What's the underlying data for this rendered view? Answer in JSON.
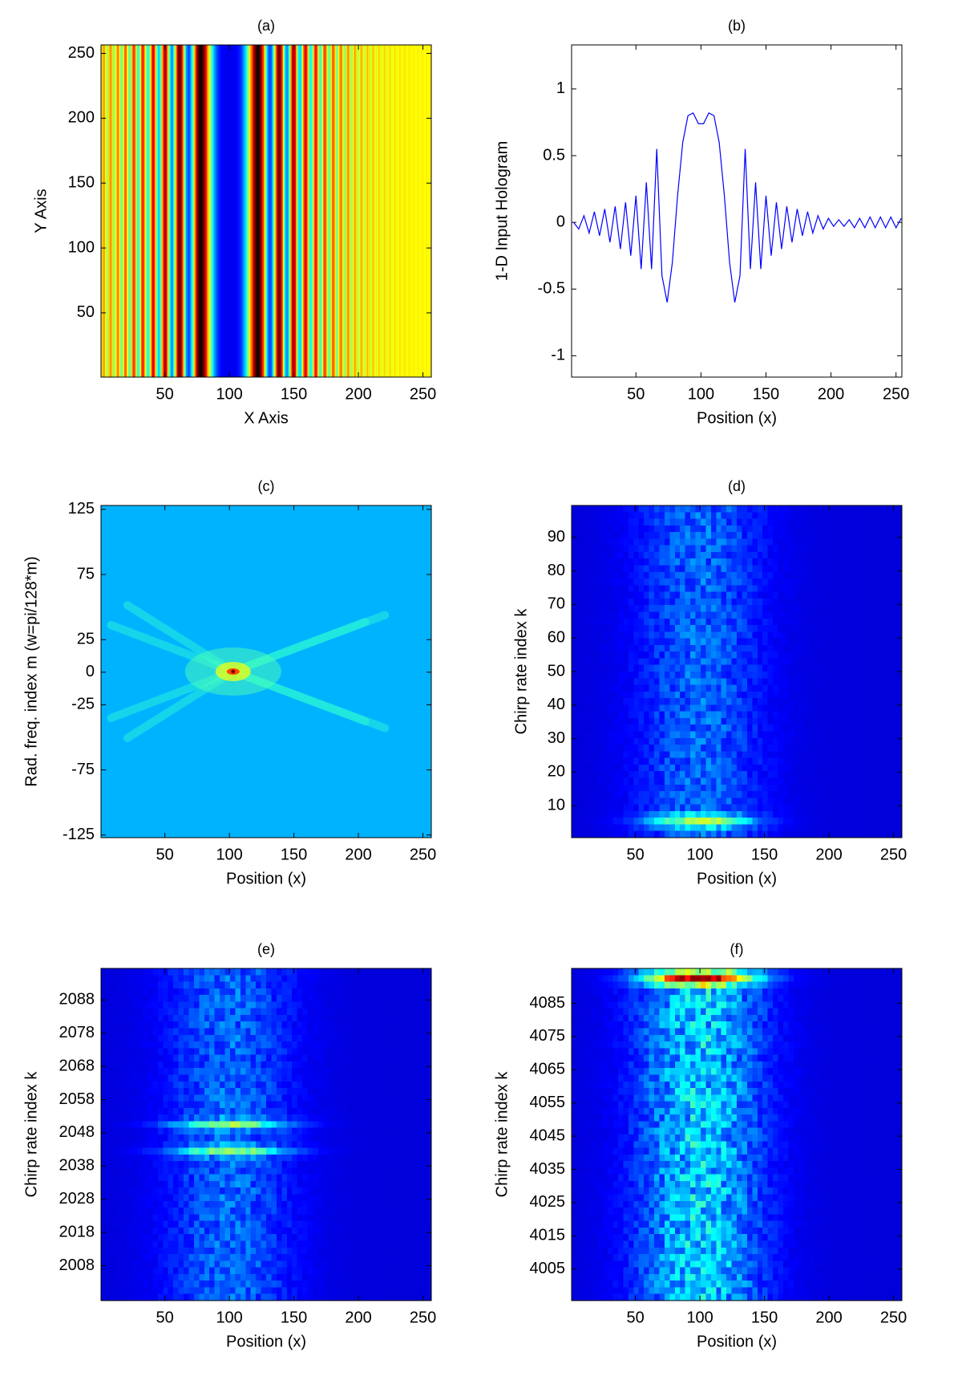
{
  "chart_data": [
    {
      "type": "image",
      "title": "(a)",
      "x_label": "X Axis",
      "y_label": "Y Axis",
      "xlim": [
        0.5,
        256.5
      ],
      "ylim": [
        0.5,
        256.5
      ],
      "xticks": [
        50,
        100,
        150,
        200,
        250
      ],
      "yticks": [
        50,
        100,
        150,
        200,
        250
      ]
    },
    {
      "type": "line",
      "title": "(b)",
      "x_label": "Position (x)",
      "y_label": "1-D Input Hologram",
      "x": [
        2,
        6,
        10,
        14,
        18,
        22,
        26,
        30,
        34,
        38,
        42,
        46,
        50,
        54,
        58,
        62,
        66,
        70,
        74,
        78,
        82,
        86,
        90,
        94,
        98,
        102,
        106,
        110,
        114,
        118,
        122,
        126,
        130,
        134,
        138,
        142,
        146,
        150,
        154,
        158,
        162,
        166,
        170,
        174,
        178,
        182,
        186,
        190,
        194,
        198,
        202,
        206,
        210,
        214,
        218,
        222,
        226,
        230,
        234,
        238,
        242,
        246,
        250,
        254
      ],
      "series": [
        {
          "color": "#0000ff",
          "values": [
            0.0,
            -0.05,
            0.05,
            -0.08,
            0.08,
            -0.1,
            0.1,
            -0.15,
            0.12,
            -0.2,
            0.15,
            -0.25,
            0.2,
            -0.35,
            0.3,
            -0.35,
            0.55,
            -0.4,
            -0.6,
            -0.3,
            0.2,
            0.6,
            0.8,
            0.82,
            0.74,
            0.74,
            0.82,
            0.8,
            0.6,
            0.2,
            -0.3,
            -0.6,
            -0.4,
            0.55,
            -0.35,
            0.3,
            -0.35,
            0.2,
            -0.25,
            0.15,
            -0.2,
            0.12,
            -0.15,
            0.1,
            -0.1,
            0.08,
            -0.08,
            0.05,
            -0.05,
            0.03,
            -0.03,
            0.02,
            -0.03,
            0.02,
            -0.04,
            0.03,
            -0.04,
            0.04,
            -0.04,
            0.04,
            -0.04,
            0.04,
            -0.04,
            0.03
          ]
        }
      ],
      "xlim": [
        0.5,
        254.5
      ],
      "ylim": [
        -1.16,
        1.33
      ],
      "xticks": [
        50,
        100,
        150,
        200,
        250
      ],
      "yticks": [
        -1,
        -0.5,
        0,
        0.5,
        1
      ]
    },
    {
      "type": "image",
      "title": "(c)",
      "x_label": "Position (x)",
      "y_label": "Rad. freq. index m (w=pi/128*m)",
      "xlim": [
        0.5,
        256.5
      ],
      "ylim": [
        -127,
        128
      ],
      "xticks": [
        50,
        100,
        150,
        200,
        250
      ],
      "yticks": [
        125,
        75,
        25,
        0,
        -25,
        -75,
        -125
      ]
    },
    {
      "type": "image",
      "title": "(d)",
      "x_label": "Position (x)",
      "y_label": "Chirp rate index k",
      "xlim": [
        0.5,
        256.5
      ],
      "ylim": [
        0.5,
        99.5
      ],
      "xticks": [
        50,
        100,
        150,
        200,
        250
      ],
      "yticks": [
        10,
        20,
        30,
        40,
        50,
        60,
        70,
        80,
        90
      ]
    },
    {
      "type": "image",
      "title": "(e)",
      "x_label": "Position (x)",
      "y_label": "Chirp rate index k",
      "xlim": [
        0.5,
        256.5
      ],
      "ylim": [
        1997.5,
        2097.5
      ],
      "xticks": [
        50,
        100,
        150,
        200,
        250
      ],
      "yticks": [
        2008,
        2018,
        2028,
        2038,
        2048,
        2058,
        2068,
        2078,
        2088
      ]
    },
    {
      "type": "image",
      "title": "(f)",
      "x_label": "Position (x)",
      "y_label": "Chirp rate index k",
      "xlim": [
        0.5,
        256.5
      ],
      "ylim": [
        3995.5,
        4095.5
      ],
      "xticks": [
        50,
        100,
        150,
        200,
        250
      ],
      "yticks": [
        4005,
        4015,
        4025,
        4035,
        4045,
        4055,
        4065,
        4075,
        4085
      ]
    }
  ]
}
